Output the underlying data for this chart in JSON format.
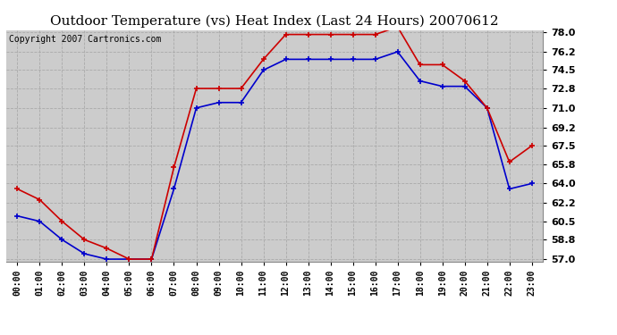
{
  "title": "Outdoor Temperature (vs) Heat Index (Last 24 Hours) 20070612",
  "copyright": "Copyright 2007 Cartronics.com",
  "hours": [
    "00:00",
    "01:00",
    "02:00",
    "03:00",
    "04:00",
    "05:00",
    "06:00",
    "07:00",
    "08:00",
    "09:00",
    "10:00",
    "11:00",
    "12:00",
    "13:00",
    "14:00",
    "15:00",
    "16:00",
    "17:00",
    "18:00",
    "19:00",
    "20:00",
    "21:00",
    "22:00",
    "23:00"
  ],
  "temp_blue": [
    61.0,
    60.5,
    58.8,
    57.5,
    57.0,
    57.0,
    57.0,
    63.5,
    71.0,
    71.5,
    71.5,
    74.5,
    75.5,
    75.5,
    75.5,
    75.5,
    75.5,
    76.2,
    73.5,
    73.0,
    73.0,
    71.0,
    63.5,
    64.0
  ],
  "heat_red": [
    63.5,
    62.5,
    60.5,
    58.8,
    58.0,
    57.0,
    57.0,
    65.5,
    72.8,
    72.8,
    72.8,
    75.5,
    77.8,
    77.8,
    77.8,
    77.8,
    77.8,
    78.5,
    75.0,
    75.0,
    73.5,
    71.0,
    66.0,
    67.5
  ],
  "ylim": [
    57.0,
    78.0
  ],
  "yticks": [
    57.0,
    58.8,
    60.5,
    62.2,
    64.0,
    65.8,
    67.5,
    69.2,
    71.0,
    72.8,
    74.5,
    76.2,
    78.0
  ],
  "fig_bg": "#ffffff",
  "plot_bg": "#cccccc",
  "blue_color": "#0000cc",
  "red_color": "#cc0000",
  "grid_color": "#aaaaaa",
  "title_fontsize": 11,
  "copyright_fontsize": 7,
  "tick_fontsize": 8,
  "xtick_fontsize": 7
}
